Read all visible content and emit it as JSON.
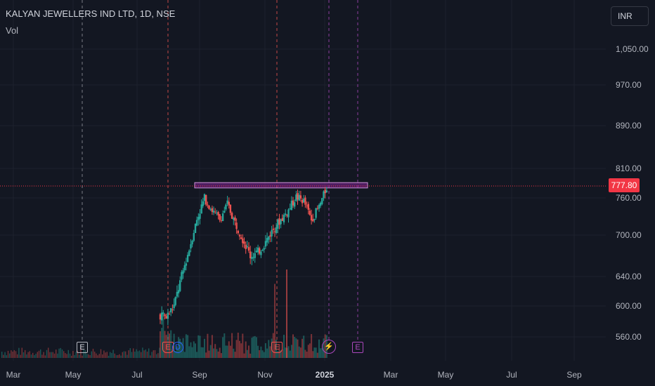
{
  "header": {
    "symbol_title": "KALYAN JEWELLERS IND LTD, 1D, NSE",
    "volume_label": "Vol",
    "currency": "INR"
  },
  "price_axis": {
    "ticks": [
      "1,050.00",
      "970.00",
      "890.00",
      "810.00",
      "760.00",
      "700.00",
      "640.00",
      "600.00",
      "560.00"
    ],
    "last_price": "777.80"
  },
  "time_axis": {
    "ticks": [
      "Mar",
      "May",
      "Jul",
      "Sep",
      "Nov",
      "2025",
      "Mar",
      "May",
      "Jul",
      "Sep"
    ]
  },
  "event_markers": [
    {
      "label": "E",
      "kind": "earnings-past"
    },
    {
      "label": "E",
      "kind": "earnings-past-red"
    },
    {
      "label": "D",
      "kind": "dividend"
    },
    {
      "label": "E",
      "kind": "earnings-past-red"
    },
    {
      "label": "⚡",
      "kind": "split"
    },
    {
      "label": "E",
      "kind": "earnings-upcoming"
    }
  ],
  "colors": {
    "background": "#131722",
    "up": "#26a69a",
    "down": "#ef5350",
    "resistance_zone": "#9c27b0",
    "price_tag": "#f23645"
  },
  "chart_data": {
    "type": "candlestick",
    "interval": "1D",
    "series": [
      {
        "name": "price",
        "values": [
          [
            "2024-08-05",
            590
          ],
          [
            "2024-08-12",
            585
          ],
          [
            "2024-08-19",
            600
          ],
          [
            "2024-08-26",
            640
          ],
          [
            "2024-09-02",
            680
          ],
          [
            "2024-09-09",
            725
          ],
          [
            "2024-09-16",
            760
          ],
          [
            "2024-09-23",
            740
          ],
          [
            "2024-09-30",
            725
          ],
          [
            "2024-10-07",
            750
          ],
          [
            "2024-10-14",
            720
          ],
          [
            "2024-10-21",
            695
          ],
          [
            "2024-10-28",
            670
          ],
          [
            "2024-11-04",
            675
          ],
          [
            "2024-11-11",
            690
          ],
          [
            "2024-11-18",
            710
          ],
          [
            "2024-11-25",
            725
          ],
          [
            "2024-12-02",
            740
          ],
          [
            "2024-12-09",
            762
          ],
          [
            "2024-12-16",
            755
          ],
          [
            "2024-12-23",
            725
          ],
          [
            "2024-12-30",
            745
          ],
          [
            "2025-01-03",
            777.8
          ]
        ]
      }
    ],
    "ylim": [
      530,
      1090
    ],
    "resistance_zone": [
      777,
      786
    ],
    "last_price": 777.8
  }
}
